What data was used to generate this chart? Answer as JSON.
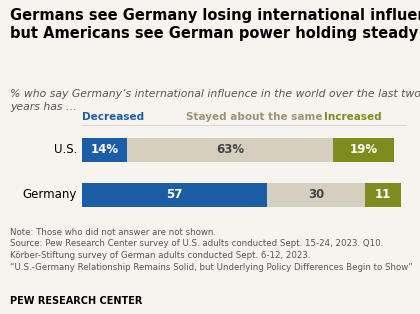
{
  "title": "Germans see Germany losing international influence,\nbut Americans see German power holding steady",
  "subtitle": "% who say Germany’s international influence in the world over the last two\nyears has …",
  "categories": [
    "U.S.",
    "Germany"
  ],
  "decreased": [
    14,
    57
  ],
  "same": [
    63,
    30
  ],
  "increased": [
    19,
    11
  ],
  "decreased_labels": [
    "14%",
    "57"
  ],
  "same_labels": [
    "63%",
    "30"
  ],
  "increased_labels": [
    "19%",
    "11"
  ],
  "color_decreased": "#1b5ea6",
  "color_same": "#d5cfc0",
  "color_increased": "#7d8c1f",
  "legend_labels": [
    "Decreased",
    "Stayed about the same",
    "Increased"
  ],
  "legend_colors": [
    "#1b5ea6",
    "#9e9474",
    "#7d8c1f"
  ],
  "note": "Note: Those who did not answer are not shown.\nSource: Pew Research Center survey of U.S. adults conducted Sept. 15-24, 2023. Q10.\nKörber-Stiftung survey of German adults conducted Sept. 6-12, 2023.\n“U.S.-Germany Relationship Remains Solid, but Underlying Policy Differences Begin to Show”",
  "footer": "PEW RESEARCH CENTER",
  "background_color": "#f7f4ef",
  "title_fontsize": 10.5,
  "subtitle_fontsize": 7.8,
  "label_fontsize": 8.5,
  "note_fontsize": 6.2,
  "footer_fontsize": 7.0,
  "legend_fontsize": 7.5,
  "cat_fontsize": 8.5
}
